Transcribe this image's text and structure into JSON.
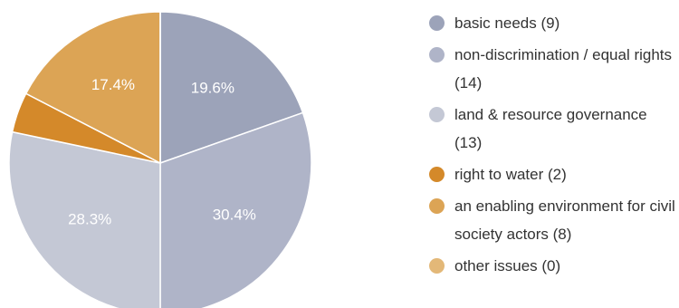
{
  "chart_data": {
    "type": "pie",
    "categories": [
      "basic needs (9)",
      "non-discrimination / equal rights (14)",
      "land & resource governance (13)",
      "right to water (2)",
      "an enabling environment for civil society actors (8)",
      "other issues (0)"
    ],
    "values": [
      19.6,
      30.4,
      28.3,
      4.3,
      17.4,
      0
    ],
    "value_labels": [
      "19.6%",
      "30.4%",
      "28.3%",
      null,
      "17.4%",
      null
    ],
    "colors": [
      "#9ca3b9",
      "#afb4c8",
      "#c4c8d5",
      "#d4892a",
      "#dca455",
      "#e3b878"
    ],
    "legend": "right"
  }
}
